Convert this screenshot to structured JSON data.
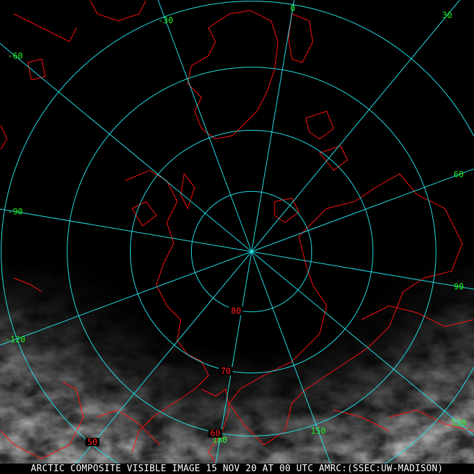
{
  "caption": "ARCTIC COMPOSITE VISIBLE IMAGE 15 NOV 20 AT 00 UTC AMRC:(SSEC:UW-MADISON)",
  "map": {
    "projection": "polar stereographic (north pole)",
    "grid_color": "#22e0e8",
    "coastline_color": "#ff1010",
    "longitude_label_color": "#22ee22",
    "latitude_label_color": "#ff2020",
    "meridians": [
      -150,
      -120,
      -90,
      -60,
      -30,
      0,
      30,
      60,
      90,
      120,
      150,
      180
    ],
    "parallels": [
      80,
      70,
      60,
      50
    ],
    "longitude_labels": [
      {
        "text": "-30",
        "lon": -30
      },
      {
        "text": "0",
        "lon": 0
      },
      {
        "text": "30",
        "lon": 30
      },
      {
        "text": "-60",
        "lon": -60
      },
      {
        "text": "60",
        "lon": 60
      },
      {
        "text": "-90",
        "lon": -90
      },
      {
        "text": "90",
        "lon": 90
      },
      {
        "text": "-120",
        "lon": -120
      },
      {
        "text": "120",
        "lon": 120
      },
      {
        "text": "150",
        "lon": 150
      },
      {
        "text": "180",
        "lon": 180
      },
      {
        "text": "-",
        "lon": -150
      }
    ],
    "latitude_labels": [
      {
        "text": "80",
        "lat": 80
      },
      {
        "text": "70",
        "lat": 70
      },
      {
        "text": "60",
        "lat": 60
      },
      {
        "text": "50",
        "lat": 50
      }
    ]
  }
}
